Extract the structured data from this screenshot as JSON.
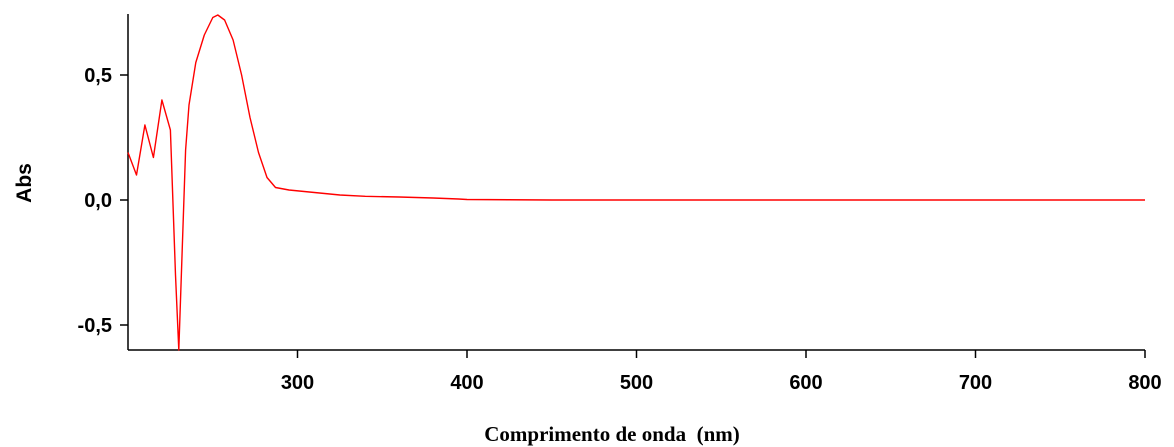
{
  "chart_data": {
    "type": "line",
    "title": "",
    "xlabel": "Comprimento de onda  (nm)",
    "ylabel": "Abs",
    "xlim": [
      200,
      800
    ],
    "ylim": [
      -0.6,
      0.75
    ],
    "x_ticks": [
      300,
      400,
      500,
      600,
      700,
      800
    ],
    "x_tick_labels": [
      "300",
      "400",
      "500",
      "600",
      "700",
      "800"
    ],
    "y_ticks": [
      -0.5,
      0.0,
      0.5
    ],
    "y_tick_labels": [
      "-0,5",
      "0,0",
      "0,5"
    ],
    "grid": false,
    "legend": "none",
    "series": [
      {
        "color": "#ff0000",
        "points": [
          [
            200,
            0.19
          ],
          [
            205,
            0.1
          ],
          [
            210,
            0.3
          ],
          [
            215,
            0.17
          ],
          [
            220,
            0.4
          ],
          [
            225,
            0.28
          ],
          [
            228,
            -0.3
          ],
          [
            230,
            -0.6
          ],
          [
            232,
            -0.2
          ],
          [
            234,
            0.2
          ],
          [
            236,
            0.38
          ],
          [
            240,
            0.55
          ],
          [
            245,
            0.66
          ],
          [
            250,
            0.73
          ],
          [
            253,
            0.74
          ],
          [
            257,
            0.72
          ],
          [
            262,
            0.64
          ],
          [
            267,
            0.5
          ],
          [
            272,
            0.33
          ],
          [
            277,
            0.19
          ],
          [
            282,
            0.09
          ],
          [
            287,
            0.05
          ],
          [
            295,
            0.04
          ],
          [
            310,
            0.03
          ],
          [
            325,
            0.02
          ],
          [
            340,
            0.015
          ],
          [
            360,
            0.012
          ],
          [
            380,
            0.008
          ],
          [
            395,
            0.004
          ],
          [
            400,
            0.002
          ],
          [
            450,
            0.0
          ],
          [
            500,
            0.0
          ],
          [
            600,
            0.0
          ],
          [
            700,
            0.0
          ],
          [
            800,
            0.0
          ]
        ]
      }
    ]
  }
}
